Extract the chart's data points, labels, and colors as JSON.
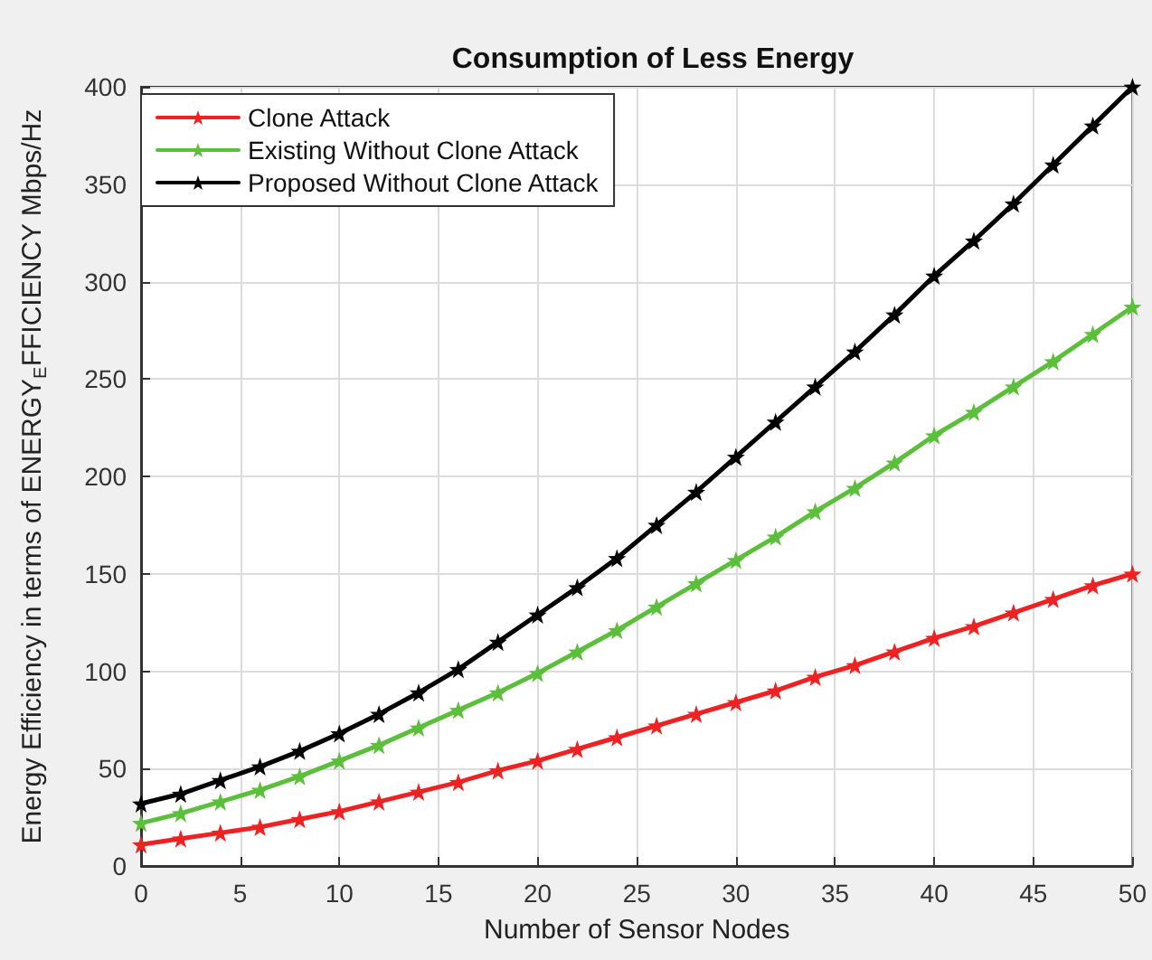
{
  "chart_data": {
    "type": "line",
    "title": "Consumption of Less Energy",
    "xlabel": "Number of Sensor Nodes",
    "ylabel": "Energy Efficiency in terms of ENERGY$_{E}$FFICIENCY Mbps/Hz",
    "x": [
      0,
      2,
      4,
      6,
      8,
      10,
      12,
      14,
      16,
      18,
      20,
      22,
      24,
      26,
      28,
      30,
      32,
      34,
      36,
      38,
      40,
      42,
      44,
      46,
      48,
      50
    ],
    "series": [
      {
        "name": "Clone Attack",
        "color": "#ee2222",
        "values": [
          11,
          14,
          17,
          20,
          24,
          28,
          33,
          38,
          43,
          49,
          54,
          60,
          66,
          72,
          78,
          84,
          90,
          97,
          103,
          110,
          117,
          123,
          130,
          137,
          144,
          150
        ]
      },
      {
        "name": "Existing Without Clone Attack",
        "color": "#5cbf3c",
        "values": [
          22,
          27,
          33,
          39,
          46,
          54,
          62,
          71,
          80,
          89,
          99,
          110,
          121,
          133,
          145,
          157,
          169,
          182,
          194,
          207,
          221,
          233,
          246,
          259,
          273,
          287
        ]
      },
      {
        "name": "Proposed Without Clone Attack",
        "color": "#000000",
        "values": [
          32,
          37,
          44,
          51,
          59,
          68,
          78,
          89,
          101,
          115,
          129,
          143,
          158,
          175,
          192,
          210,
          228,
          246,
          264,
          283,
          303,
          321,
          340,
          360,
          380,
          400
        ]
      }
    ],
    "xlim": [
      0,
      50
    ],
    "xticks": [
      0,
      5,
      10,
      15,
      20,
      25,
      30,
      35,
      40,
      45,
      50
    ],
    "ylim": [
      0,
      400
    ],
    "yticks": [
      0,
      50,
      100,
      150,
      200,
      250,
      300,
      350,
      400
    ],
    "grid": true,
    "legend": "top left",
    "marker": "star",
    "line_style": "solid"
  }
}
